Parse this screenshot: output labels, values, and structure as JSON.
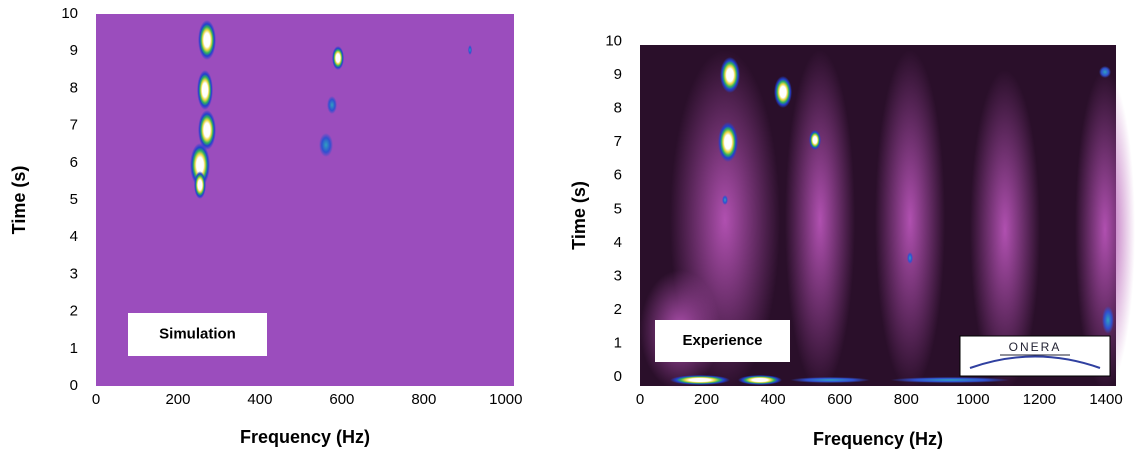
{
  "chart_data": [
    {
      "type": "spectrogram",
      "x_label": "Frequency (Hz)",
      "y_label": "Time (s)",
      "annotation": "Simulation",
      "background": "#9b4dbd",
      "xlim": [
        0,
        1020
      ],
      "ylim": [
        0,
        10
      ],
      "xticks": [
        0,
        200,
        400,
        600,
        800,
        1000
      ],
      "yticks": [
        0,
        1,
        2,
        3,
        4,
        5,
        6,
        7,
        8,
        9,
        10
      ]
    },
    {
      "type": "spectrogram",
      "x_label": "Frequency (Hz)",
      "y_label": "Time (s)",
      "annotation": "Experience",
      "logo_text": "ONERA",
      "background": "#2a0f2a",
      "xlim": [
        0,
        1430
      ],
      "ylim": [
        -0.27,
        9.9
      ],
      "xticks": [
        0,
        200,
        400,
        600,
        800,
        1000,
        1200,
        1400
      ],
      "yticks": [
        0,
        1,
        2,
        3,
        4,
        5,
        6,
        7,
        8,
        9,
        10
      ]
    }
  ]
}
